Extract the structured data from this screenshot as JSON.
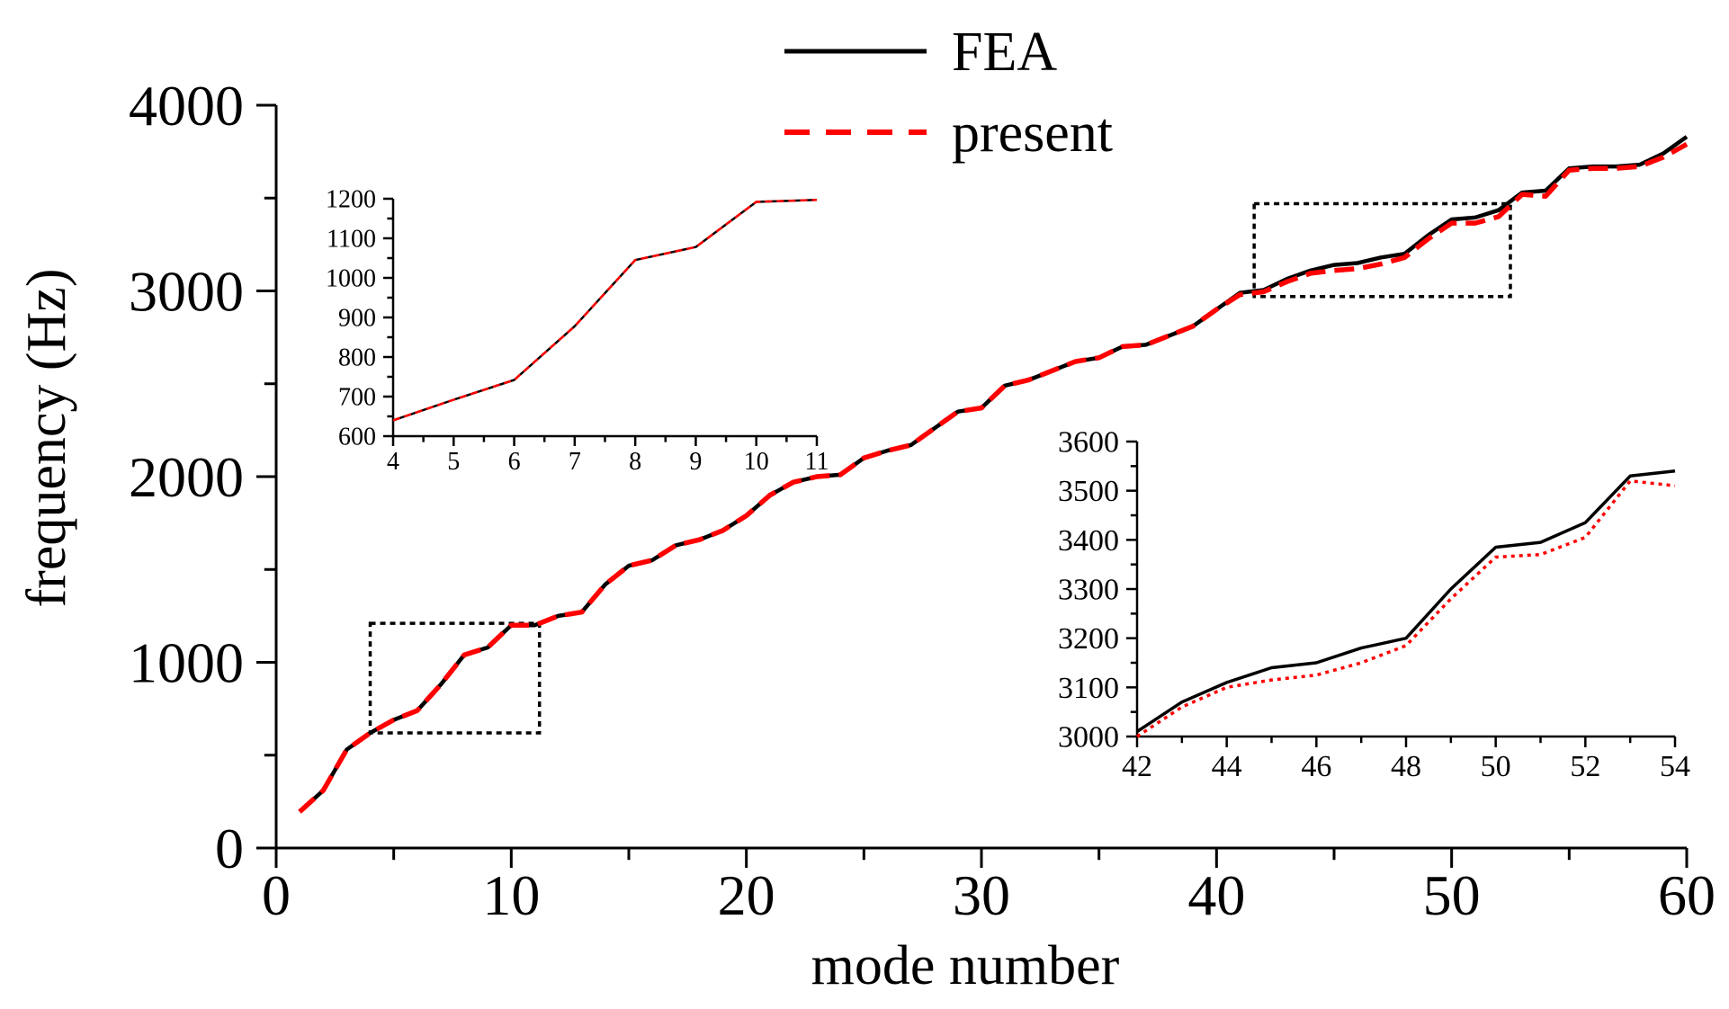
{
  "colors": {
    "fea": "#000000",
    "present": "#ff0000",
    "axis": "#000000",
    "box": "#000000",
    "background": "#ffffff"
  },
  "chart_data": [
    {
      "id": "main",
      "type": "line",
      "title": "",
      "xlabel": "mode number",
      "ylabel": "frequency (Hz)",
      "xlim": [
        0,
        60
      ],
      "ylim": [
        0,
        4000
      ],
      "xticks": [
        0,
        10,
        20,
        30,
        40,
        50,
        60
      ],
      "yticks": [
        0,
        1000,
        2000,
        3000,
        4000
      ],
      "xtick_labels": [
        "0",
        "10",
        "20",
        "30",
        "40",
        "50",
        "60"
      ],
      "ytick_labels": [
        "0",
        "1000",
        "2000",
        "3000",
        "4000"
      ],
      "legend": {
        "placement": "top-center",
        "entries": [
          "FEA",
          "present"
        ]
      },
      "x": [
        1,
        2,
        3,
        4,
        5,
        6,
        7,
        8,
        9,
        10,
        11,
        12,
        13,
        14,
        15,
        16,
        17,
        18,
        19,
        20,
        21,
        22,
        23,
        24,
        25,
        26,
        27,
        28,
        29,
        30,
        31,
        32,
        33,
        34,
        35,
        36,
        37,
        38,
        39,
        40,
        41,
        42,
        43,
        44,
        45,
        46,
        47,
        48,
        49,
        50,
        51,
        52,
        53,
        54,
        55,
        56,
        57,
        58,
        59,
        60
      ],
      "series": [
        {
          "name": "FEA",
          "style": "solid",
          "values": [
            195,
            310,
            530,
            620,
            690,
            740,
            880,
            1040,
            1080,
            1200,
            1200,
            1250,
            1270,
            1420,
            1520,
            1550,
            1630,
            1660,
            1710,
            1790,
            1900,
            1970,
            2000,
            2010,
            2100,
            2140,
            2170,
            2260,
            2350,
            2370,
            2490,
            2520,
            2570,
            2620,
            2640,
            2700,
            2710,
            2760,
            2810,
            2900,
            2990,
            3005,
            3065,
            3110,
            3140,
            3150,
            3180,
            3200,
            3300,
            3385,
            3395,
            3435,
            3530,
            3540,
            3660,
            3670,
            3670,
            3680,
            3740,
            3830
          ]
        },
        {
          "name": "present",
          "style": "dashed",
          "values": [
            195,
            310,
            530,
            620,
            690,
            740,
            880,
            1040,
            1080,
            1200,
            1200,
            1250,
            1270,
            1420,
            1520,
            1550,
            1630,
            1660,
            1710,
            1790,
            1900,
            1970,
            2000,
            2010,
            2100,
            2140,
            2170,
            2260,
            2350,
            2370,
            2490,
            2520,
            2570,
            2620,
            2640,
            2700,
            2710,
            2760,
            2810,
            2900,
            2980,
            2995,
            3050,
            3095,
            3110,
            3120,
            3145,
            3180,
            3280,
            3365,
            3365,
            3400,
            3520,
            3510,
            3650,
            3660,
            3660,
            3670,
            3720,
            3790
          ]
        }
      ],
      "zoom_boxes": [
        {
          "x": [
            4,
            11.2
          ],
          "y": [
            620,
            1210
          ]
        },
        {
          "x": [
            41.6,
            52.5
          ],
          "y": [
            2970,
            3470
          ]
        }
      ]
    },
    {
      "id": "inset-left",
      "type": "line",
      "xlim": [
        4,
        11
      ],
      "ylim": [
        600,
        1200
      ],
      "xticks": [
        4,
        5,
        6,
        7,
        8,
        9,
        10,
        11
      ],
      "yticks": [
        600,
        700,
        800,
        900,
        1000,
        1100,
        1200
      ],
      "xtick_labels": [
        "4",
        "5",
        "6",
        "7",
        "8",
        "9",
        "10",
        "11"
      ],
      "ytick_labels": [
        "600",
        "700",
        "800",
        "900",
        "1000",
        "1100",
        "1200"
      ],
      "x": [
        4,
        5,
        6,
        7,
        8,
        9,
        10,
        11
      ],
      "series": [
        {
          "name": "FEA",
          "style": "solid",
          "values": [
            640,
            692,
            742,
            878,
            1045,
            1078,
            1192,
            1197
          ]
        },
        {
          "name": "present",
          "style": "dashed",
          "values": [
            640,
            692,
            742,
            878,
            1045,
            1078,
            1192,
            1197
          ]
        }
      ]
    },
    {
      "id": "inset-right",
      "type": "line",
      "xlim": [
        42,
        54
      ],
      "ylim": [
        3000,
        3600
      ],
      "xticks": [
        42,
        44,
        46,
        48,
        50,
        52,
        54
      ],
      "yticks": [
        3000,
        3100,
        3200,
        3300,
        3400,
        3500,
        3600
      ],
      "xtick_labels": [
        "42",
        "44",
        "46",
        "48",
        "50",
        "52",
        "54"
      ],
      "ytick_labels": [
        "3000",
        "3100",
        "3200",
        "3300",
        "3400",
        "3500",
        "3600"
      ],
      "x": [
        42,
        43,
        44,
        45,
        46,
        47,
        48,
        49,
        50,
        51,
        52,
        53,
        54
      ],
      "series": [
        {
          "name": "FEA",
          "style": "solid",
          "values": [
            3010,
            3070,
            3110,
            3140,
            3150,
            3180,
            3200,
            3300,
            3385,
            3395,
            3435,
            3530,
            3540
          ]
        },
        {
          "name": "present",
          "style": "dotted",
          "values": [
            3000,
            3060,
            3100,
            3115,
            3125,
            3150,
            3185,
            3280,
            3365,
            3370,
            3405,
            3520,
            3510
          ]
        }
      ]
    }
  ]
}
